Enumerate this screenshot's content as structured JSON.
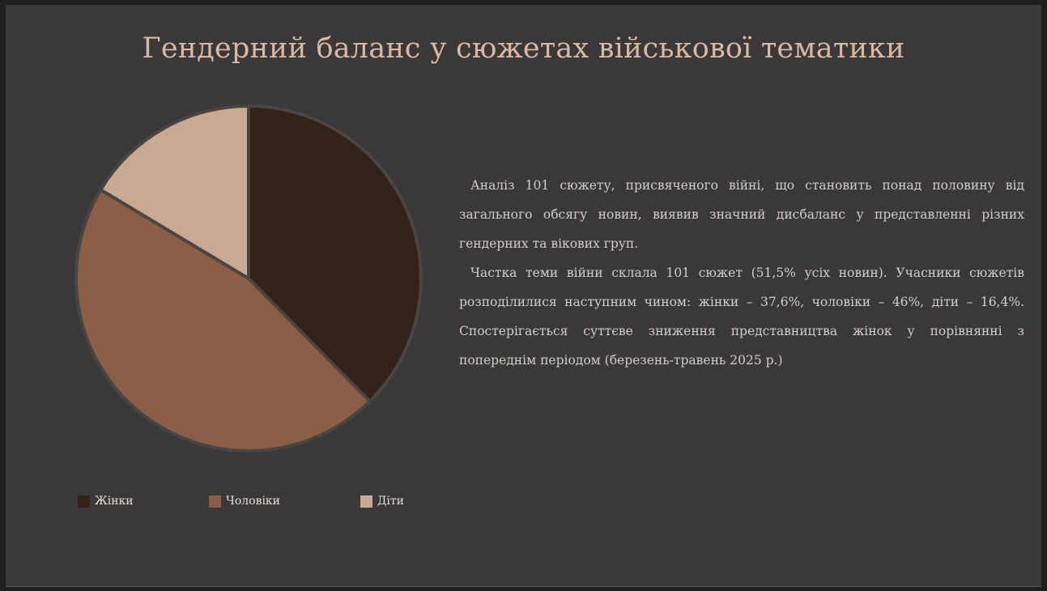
{
  "slide": {
    "title": "Гендерний баланс у сюжетах військової тематики",
    "paragraphs": [
      "Аналіз 101 сюжету, присвяченого війні, що становить понад половину від загального обсягу новин, виявив значний дисбаланс у представленні різних гендерних та вікових груп.",
      "Частка теми війни склала 101 сюжет (51,5% усіх новин). Учасники сюжетів розподілилися наступним чином: жінки – 37,6%, чоловіки – 46%, діти – 16,4%. Спостерігається суттєве зниження представництва жінок у порівнянні з попереднім періодом (березень-травень 2025 р.)"
    ]
  },
  "chart_data": {
    "type": "pie",
    "title": "",
    "categories": [
      "Жінки",
      "Чоловіки",
      "Діти"
    ],
    "values": [
      37.6,
      46,
      16.4
    ],
    "colors": [
      "#32221a",
      "#8b5e47",
      "#c9a894"
    ],
    "legend": "bottom"
  }
}
